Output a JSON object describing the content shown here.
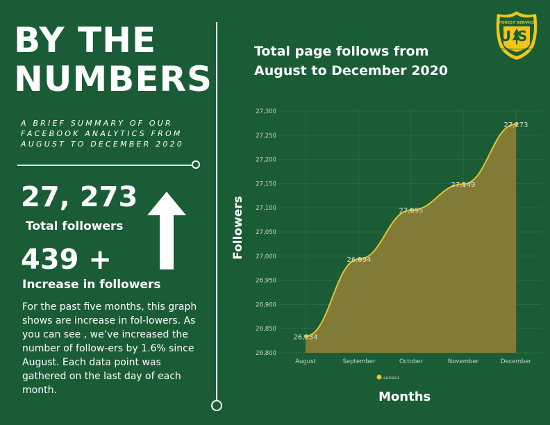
{
  "heading": {
    "line1": "BY THE",
    "line2": "NUMBERS"
  },
  "subtitle": "A brief summary of our Facebook analytics from August to December 2020",
  "stats": [
    {
      "value": "27, 273",
      "label": "Total followers"
    },
    {
      "value": "439 +",
      "label": "Increase in followers"
    }
  ],
  "body_text": "For the past five months, this graph shows are increase in fol-lowers. As you can see , we’ve increased the number of  follow-ers by 1.6% since August. Each data point was gathered on the last day of each month.",
  "logo": {
    "top_text": "FOREST SERVICE",
    "letters": "US",
    "bottom_text": "DEPARTMENT OF AGRICULTURE"
  },
  "colors": {
    "background": "#1a5c36",
    "text": "#ffffff",
    "area_fill": "#827b37",
    "line": "#e3c52c",
    "gridline": "#2c6b45",
    "tick": "#c9d6cc",
    "logo_gold": "#f1c51a",
    "logo_green": "#1a5c36"
  },
  "chart_data": {
    "type": "area",
    "title": "Total page follows from August to December 2020",
    "xlabel": "Months",
    "ylabel": "Followers",
    "categories": [
      "August",
      "September",
      "October",
      "November",
      "December"
    ],
    "series": [
      {
        "name": "series1",
        "values": [
          26834,
          26994,
          27095,
          27149,
          27273
        ]
      }
    ],
    "data_labels": [
      "26,834",
      "26,994",
      "27,095",
      "27,149",
      "27,273"
    ],
    "yticks": [
      "26,800",
      "26,850",
      "26,900",
      "26,950",
      "27,000",
      "27,050",
      "27,100",
      "27,150",
      "27,200",
      "27,250",
      "27,300"
    ],
    "ylim": [
      26800,
      27300
    ],
    "grid": true,
    "legend": "bottom-center"
  }
}
